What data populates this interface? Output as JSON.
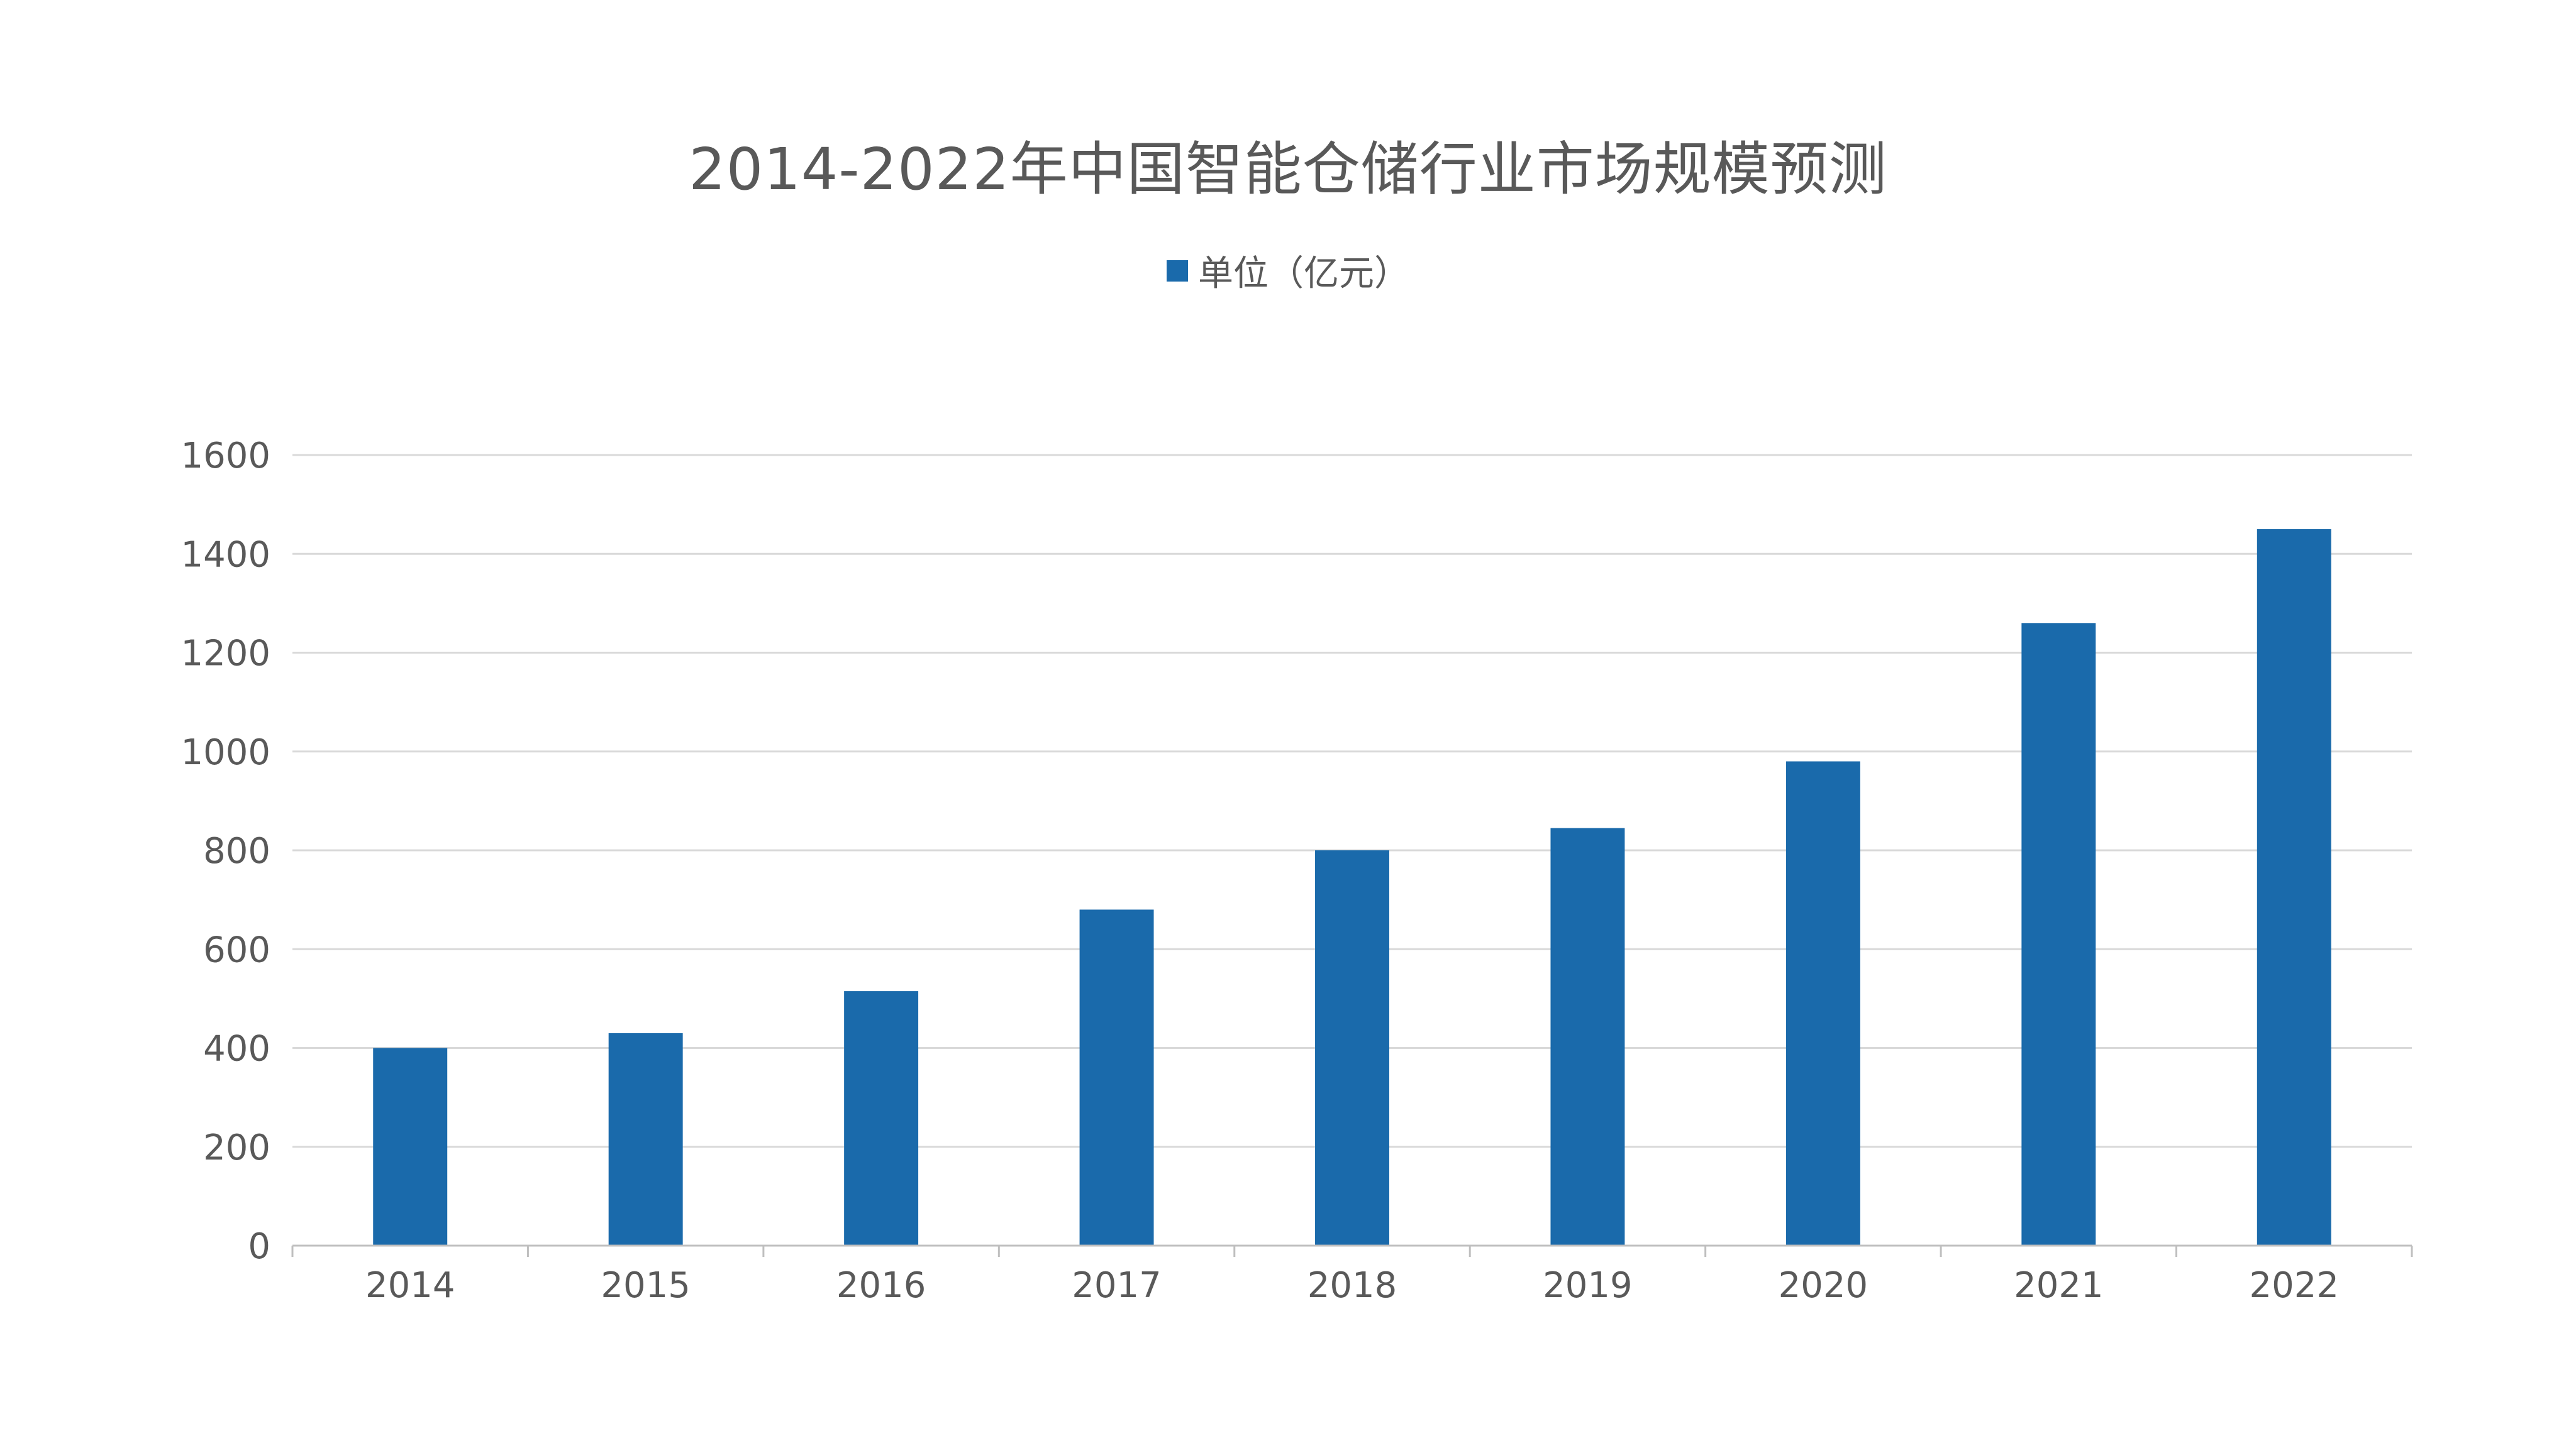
{
  "chart_data": {
    "type": "bar",
    "title": "2014-2022年中国智能仓储行业市场规模预测",
    "categories": [
      "2014",
      "2015",
      "2016",
      "2017",
      "2018",
      "2019",
      "2020",
      "2021",
      "2022"
    ],
    "series": [
      {
        "name": "单位（亿元）",
        "values": [
          400,
          430,
          515,
          680,
          800,
          845,
          980,
          1260,
          1450
        ],
        "color": "#1a6aab"
      }
    ],
    "ylim": [
      0,
      1600
    ],
    "yticks": [
      0,
      200,
      400,
      600,
      800,
      1000,
      1200,
      1400,
      1600
    ],
    "grid": true,
    "legend_position": "top-center",
    "xlabel": "",
    "ylabel": ""
  },
  "colors": {
    "bar": "#1a6aab",
    "grid": "#d9d9d9",
    "axis": "#bfbfbf",
    "text": "#595959"
  }
}
